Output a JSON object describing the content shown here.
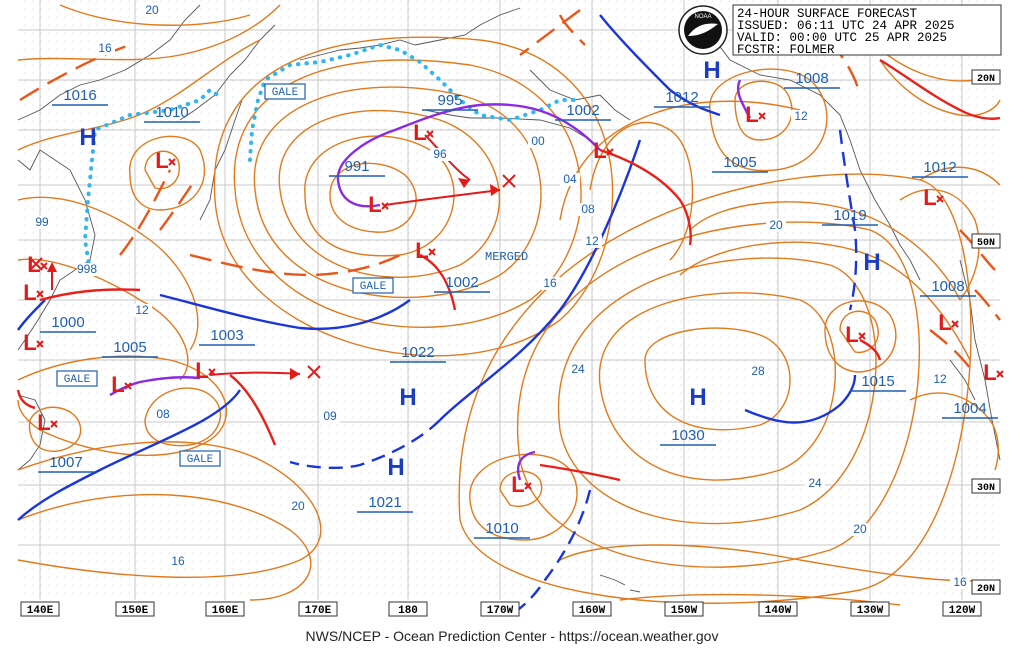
{
  "header": {
    "line1": "24-HOUR SURFACE FORECAST",
    "line2": "ISSUED: 06:11 UTC 24 APR 2025",
    "line3": "VALID:  00:00 UTC 25 APR 2025",
    "line4": "FCSTR:  FOLMER",
    "logo_text": "NOAA"
  },
  "footer": "NWS/NCEP - Ocean Prediction Center - https://ocean.weather.gov",
  "lon_labels": [
    "140E",
    "150E",
    "160E",
    "170E",
    "180",
    "170W",
    "160W",
    "150W",
    "140W",
    "130W",
    "120W"
  ],
  "lat_labels": [
    "20N",
    "50N",
    "30N",
    "20N"
  ],
  "pressure_labels": [
    "1016",
    "1010",
    "991",
    "995",
    "1002",
    "1012",
    "1008",
    "1005",
    "1012",
    "1019",
    "1008",
    "1015",
    "1004",
    "1030",
    "1022",
    "1002",
    "1003",
    "1005",
    "1000",
    "1007",
    "1021",
    "1010"
  ],
  "isobar_labels": [
    "20",
    "16",
    "99",
    "998",
    "96",
    "00",
    "04",
    "08",
    "12",
    "16",
    "20",
    "24",
    "28",
    "12",
    "12",
    "08",
    "09",
    "20",
    "16",
    "24",
    "20",
    "16",
    "12"
  ],
  "highs": [
    "H",
    "H",
    "H",
    "H",
    "H",
    "H"
  ],
  "lows": [
    "L",
    "L",
    "L",
    "L",
    "L",
    "L",
    "L",
    "L",
    "L",
    "L",
    "L",
    "L",
    "L",
    "L",
    "L",
    "L",
    "L"
  ],
  "gale_labels": [
    "GALE",
    "GALE",
    "GALE",
    "GALE"
  ],
  "merged_label": "MERGED",
  "colors": {
    "isobar": "#e07a1c",
    "front_cold": "#1a35d8",
    "front_warm": "#e8201a",
    "front_occluded": "#8a2be2",
    "high": "#1b3dbf",
    "low": "#e11a1a",
    "ice": "#33b6ee",
    "label": "#1f5fb0",
    "grid": "#c9c9c9"
  }
}
